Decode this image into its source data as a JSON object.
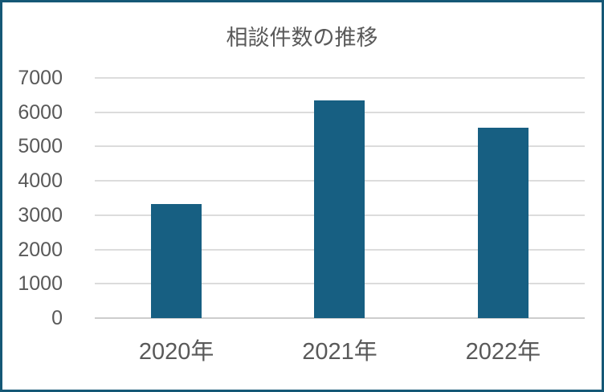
{
  "chart_data": {
    "type": "bar",
    "title": "相談件数の推移",
    "categories": [
      "2020年",
      "2021年",
      "2022年"
    ],
    "values": [
      3330,
      6350,
      5550
    ],
    "xlabel": "",
    "ylabel": "",
    "ylim": [
      0,
      7000
    ],
    "ytick_step": 1000,
    "yticks": [
      "0",
      "1000",
      "2000",
      "3000",
      "4000",
      "5000",
      "6000",
      "7000"
    ],
    "grid": "horizontal",
    "legend": "none",
    "colors": {
      "bar": "#175F82",
      "frame_border": "#155876",
      "gridline": "#DCDCDC",
      "axis_line": "#CDCDCD",
      "text": "#595959",
      "background": "#FFFFFF"
    }
  }
}
